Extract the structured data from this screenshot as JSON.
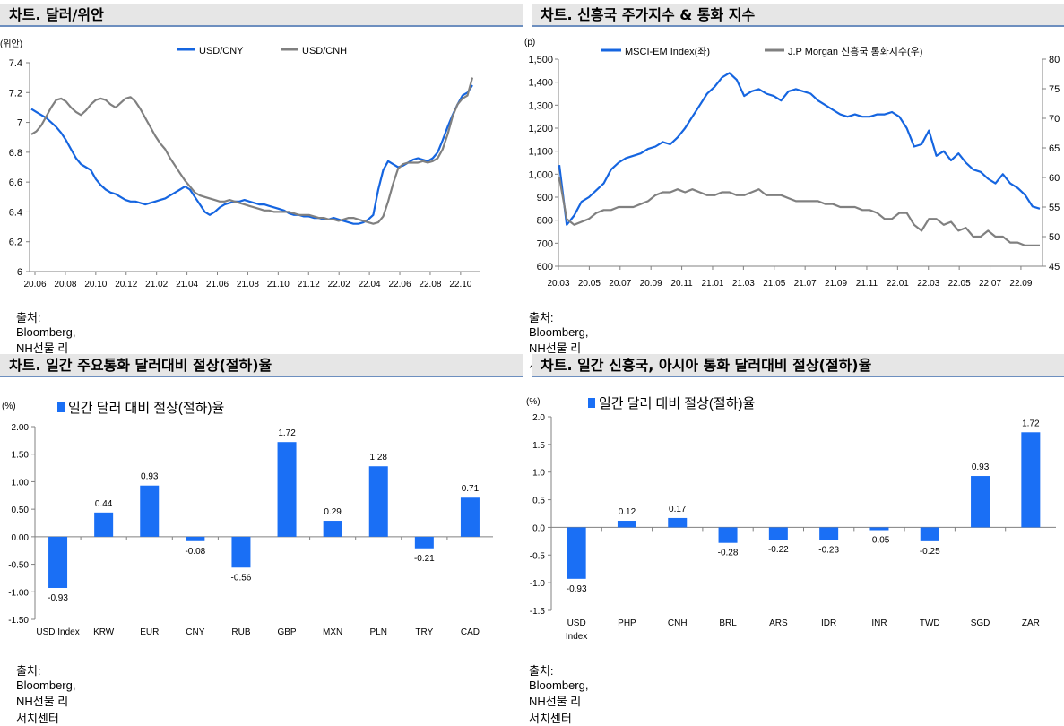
{
  "panels": {
    "p1": {
      "title": "차트. 달러/위안",
      "source": "출처: Bloomberg, NH선물 리서치센터"
    },
    "p2": {
      "title": "차트. 신흥국 주가지수 & 통화 지수",
      "source": "출처: Bloomberg, NH선물 리서치센터"
    },
    "p3": {
      "title": "차트. 일간 주요통화 달러대비 절상(절하)율",
      "source": "출처: Bloomberg, NH선물 리서치센터"
    },
    "p4": {
      "title": "차트. 일간 신흥국, 아시아 통화 달러대비 절상(절하)율",
      "source": "출처: Bloomberg, NH선물 리서치센터"
    }
  },
  "colors": {
    "blue": "#1565e0",
    "gray": "#808080",
    "bar": "#1a6ff5",
    "axis": "#808080"
  },
  "chart_data": [
    {
      "type": "line",
      "unit_label": "(위안)",
      "x_ticks": [
        "20.06",
        "20.08",
        "20.10",
        "20.12",
        "21.02",
        "21.04",
        "21.06",
        "21.08",
        "21.10",
        "21.12",
        "22.02",
        "22.04",
        "22.06",
        "22.08",
        "22.10"
      ],
      "y_ticks": [
        "6",
        "6.2",
        "6.4",
        "6.6",
        "6.8",
        "7",
        "7.2",
        "7.4"
      ],
      "ylim": [
        6,
        7.4
      ],
      "legend_position": "top",
      "series": [
        {
          "name": "USD/CNY",
          "color": "#1565e0",
          "values": [
            7.09,
            7.07,
            7.05,
            7.03,
            7.0,
            6.97,
            6.93,
            6.88,
            6.82,
            6.76,
            6.72,
            6.7,
            6.68,
            6.62,
            6.58,
            6.55,
            6.53,
            6.52,
            6.5,
            6.48,
            6.47,
            6.47,
            6.46,
            6.45,
            6.46,
            6.47,
            6.48,
            6.49,
            6.51,
            6.53,
            6.55,
            6.57,
            6.55,
            6.5,
            6.45,
            6.4,
            6.38,
            6.4,
            6.43,
            6.45,
            6.46,
            6.47,
            6.47,
            6.48,
            6.47,
            6.46,
            6.45,
            6.45,
            6.44,
            6.43,
            6.42,
            6.41,
            6.39,
            6.38,
            6.38,
            6.37,
            6.37,
            6.36,
            6.36,
            6.35,
            6.35,
            6.36,
            6.35,
            6.34,
            6.33,
            6.32,
            6.32,
            6.33,
            6.35,
            6.38,
            6.55,
            6.68,
            6.74,
            6.72,
            6.7,
            6.71,
            6.73,
            6.75,
            6.76,
            6.75,
            6.74,
            6.76,
            6.8,
            6.88,
            6.97,
            7.05,
            7.12,
            7.18,
            7.2,
            7.25
          ]
        },
        {
          "name": "USD/CNH",
          "color": "#808080",
          "values": [
            6.92,
            6.94,
            6.98,
            7.04,
            7.1,
            7.15,
            7.16,
            7.14,
            7.1,
            7.07,
            7.05,
            7.08,
            7.12,
            7.15,
            7.16,
            7.15,
            7.12,
            7.1,
            7.13,
            7.16,
            7.17,
            7.14,
            7.09,
            7.03,
            6.97,
            6.91,
            6.86,
            6.82,
            6.76,
            6.71,
            6.66,
            6.61,
            6.57,
            6.53,
            6.51,
            6.5,
            6.49,
            6.48,
            6.47,
            6.47,
            6.48,
            6.47,
            6.46,
            6.45,
            6.44,
            6.43,
            6.42,
            6.41,
            6.41,
            6.4,
            6.4,
            6.4,
            6.4,
            6.39,
            6.38,
            6.38,
            6.38,
            6.37,
            6.36,
            6.36,
            6.35,
            6.35,
            6.34,
            6.35,
            6.36,
            6.36,
            6.35,
            6.34,
            6.33,
            6.32,
            6.33,
            6.37,
            6.47,
            6.59,
            6.69,
            6.72,
            6.73,
            6.73,
            6.73,
            6.74,
            6.73,
            6.74,
            6.76,
            6.82,
            6.92,
            7.04,
            7.12,
            7.16,
            7.18,
            7.3
          ]
        }
      ]
    },
    {
      "type": "line",
      "unit_label": "(p)",
      "x_ticks": [
        "20.03",
        "20.05",
        "20.07",
        "20.09",
        "20.11",
        "21.01",
        "21.03",
        "21.05",
        "21.07",
        "21.09",
        "21.11",
        "22.01",
        "22.03",
        "22.05",
        "22.07",
        "22.09"
      ],
      "y_ticks_left": [
        "600",
        "700",
        "800",
        "900",
        "1,000",
        "1,100",
        "1,200",
        "1,300",
        "1,400",
        "1,500"
      ],
      "y_ticks_right": [
        "45",
        "50",
        "55",
        "60",
        "65",
        "70",
        "75",
        "80"
      ],
      "ylim_left": [
        600,
        1500
      ],
      "ylim_right": [
        45,
        80
      ],
      "legend_position": "top",
      "series": [
        {
          "name": "MSCI-EM Index(좌)",
          "axis": "left",
          "color": "#1565e0",
          "values": [
            1040,
            780,
            820,
            880,
            900,
            930,
            960,
            1020,
            1050,
            1070,
            1080,
            1090,
            1110,
            1120,
            1140,
            1130,
            1160,
            1200,
            1250,
            1300,
            1350,
            1380,
            1420,
            1440,
            1410,
            1340,
            1360,
            1370,
            1350,
            1340,
            1320,
            1360,
            1370,
            1360,
            1350,
            1320,
            1300,
            1280,
            1260,
            1250,
            1260,
            1250,
            1250,
            1260,
            1260,
            1270,
            1250,
            1200,
            1120,
            1130,
            1190,
            1080,
            1100,
            1060,
            1090,
            1050,
            1020,
            1010,
            980,
            960,
            1000,
            960,
            940,
            910,
            860,
            850
          ]
        },
        {
          "name": "J.P Morgan 신흥국 통화지수(우)",
          "axis": "right",
          "color": "#808080",
          "values": [
            60,
            53,
            52,
            52.5,
            53,
            54,
            54.5,
            54.5,
            55,
            55,
            55,
            55.5,
            56,
            57,
            57.5,
            57.5,
            58,
            57.5,
            58,
            57.5,
            57,
            57,
            57.5,
            57.5,
            57,
            57,
            57.5,
            58,
            57,
            57,
            57,
            56.5,
            56,
            56,
            56,
            56,
            55.5,
            55.5,
            55,
            55,
            55,
            54.5,
            54.5,
            54,
            53,
            53,
            54,
            54,
            52,
            51,
            53,
            53,
            52,
            52.5,
            51,
            51.5,
            50,
            50,
            51,
            50,
            50,
            49,
            49,
            48.5,
            48.5,
            48.5
          ]
        }
      ]
    },
    {
      "type": "bar",
      "unit_label": "(%)",
      "legend": "일간 달러 대비 절상(절하)율",
      "categories": [
        "USD Index",
        "KRW",
        "EUR",
        "CNY",
        "RUB",
        "GBP",
        "MXN",
        "PLN",
        "TRY",
        "CAD"
      ],
      "values": [
        -0.93,
        0.44,
        0.93,
        -0.08,
        -0.56,
        1.72,
        0.29,
        1.28,
        -0.21,
        0.71
      ],
      "value_labels": [
        "-0.93",
        "0.44",
        "0.93",
        "-0.08",
        "-0.56",
        "1.72",
        "0.29",
        "1.28",
        "-0.21",
        "0.71"
      ],
      "y_ticks": [
        "-1.50",
        "-1.00",
        "-0.50",
        "0.00",
        "0.50",
        "1.00",
        "1.50",
        "2.00"
      ],
      "ylim": [
        -1.5,
        2.0
      ]
    },
    {
      "type": "bar",
      "unit_label": "(%)",
      "legend": "일간 달러 대비 절상(절하)율",
      "categories": [
        "USD Index",
        "PHP",
        "CNH",
        "BRL",
        "ARS",
        "IDR",
        "INR",
        "TWD",
        "SGD",
        "ZAR"
      ],
      "values": [
        -0.93,
        0.12,
        0.17,
        -0.28,
        -0.22,
        -0.23,
        -0.05,
        -0.25,
        0.93,
        1.72
      ],
      "value_labels": [
        "-0.93",
        "0.12",
        "0.17",
        "-0.28",
        "-0.22",
        "-0.23",
        "-0.05",
        "-0.25",
        "0.93",
        "1.72"
      ],
      "y_ticks": [
        "-1.5",
        "-1.0",
        "-0.5",
        "0.0",
        "0.5",
        "1.0",
        "1.5",
        "2.0"
      ],
      "ylim": [
        -1.5,
        2.0
      ]
    }
  ]
}
